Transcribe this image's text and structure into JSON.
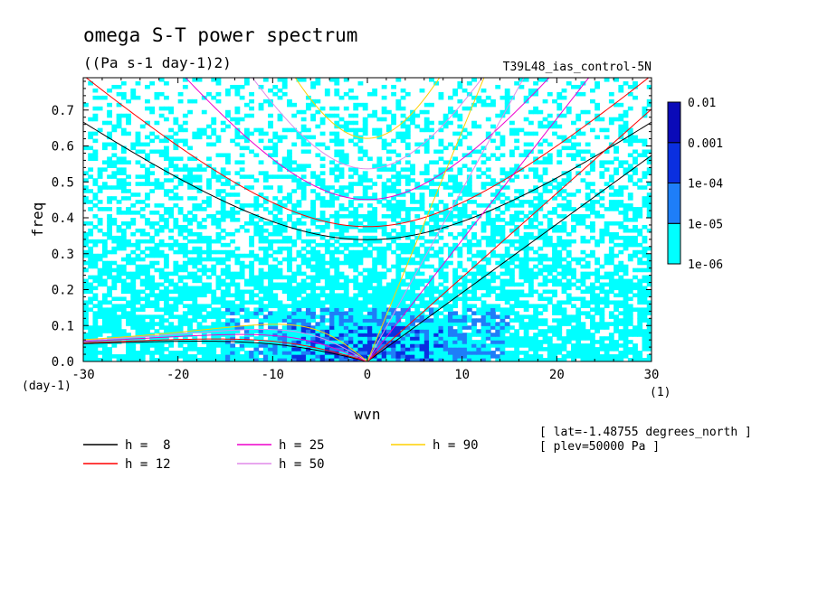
{
  "chart_data": {
    "type": "heatmap",
    "title": "omega S-T power spectrum",
    "subtitle": "((Pa s-1 day-1)2)",
    "run_label": "T39L48_ias_control-5N",
    "xlabel": "wvn",
    "ylabel": "freq",
    "x_unit": "(1)",
    "y_unit": "(day-1)",
    "xlim": [
      -30,
      30
    ],
    "ylim": [
      0,
      0.79
    ],
    "x_ticks": [
      -30,
      -20,
      -10,
      0,
      10,
      20,
      30
    ],
    "y_ticks": [
      0.0,
      0.1,
      0.2,
      0.3,
      0.4,
      0.5,
      0.6,
      0.7
    ],
    "x_tick_labels": [
      "-30",
      "-20",
      "-10",
      "0",
      "10",
      "20",
      "30"
    ],
    "y_tick_labels": [
      "0.0",
      "0.1",
      "0.2",
      "0.3",
      "0.4",
      "0.5",
      "0.6",
      "0.7"
    ],
    "colorbar": {
      "levels": [
        "1e-06",
        "1e-05",
        "1e-04",
        "0.001",
        "0.01"
      ],
      "colors": [
        "#00ffff",
        "#1e7ef8",
        "#0a2fe0",
        "#0a0ab8",
        "#4a10b0"
      ]
    },
    "dispersion_curves": [
      {
        "label": "h =  8",
        "h": 8,
        "color": "#000000"
      },
      {
        "label": "h = 12",
        "h": 12,
        "color": "#ff0000"
      },
      {
        "label": "h = 25",
        "h": 25,
        "color": "#ee00cc"
      },
      {
        "label": "h = 50",
        "h": 50,
        "color": "#e08ae8"
      },
      {
        "label": "h = 90",
        "h": 90,
        "color": "#ffd000"
      }
    ],
    "annotations": [
      "[ lat=-1.48755 degrees_north ]",
      "[ plev=50000 Pa ]"
    ],
    "grid": false,
    "legend_position": "bottom-left"
  }
}
